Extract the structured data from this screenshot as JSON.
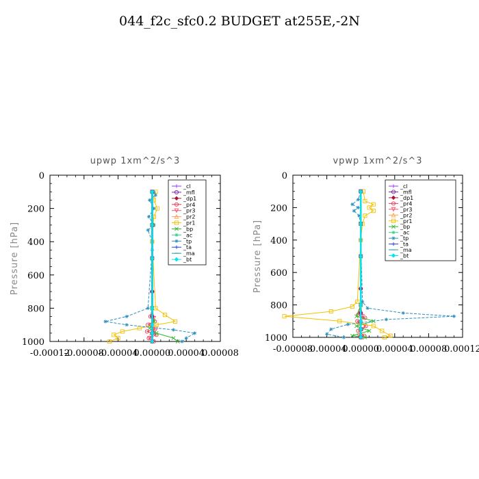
{
  "page_title": "044_f2c_sfc0.2  BUDGET at255E,-2N",
  "chart_data": [
    {
      "type": "line",
      "title": "upwp   1xm^2/s^3",
      "xlabel": "",
      "ylabel": "Pressure [hPa]",
      "xlim": [
        -0.00012,
        8e-05
      ],
      "ylim": [
        1000,
        0
      ],
      "y_reversed": true,
      "x_ticks": [
        "-0.00012",
        "-0.00008",
        "-0.00004",
        "0.00000",
        "0.00004",
        "0.00008"
      ],
      "y_ticks": [
        "0",
        "200",
        "400",
        "600",
        "800",
        "1000"
      ],
      "legend_position": "top-right",
      "series": [
        {
          "name": "_cl",
          "color": "#9b30ff",
          "marker": "+",
          "pressure": [
            100,
            300,
            500,
            700,
            850,
            950,
            1000
          ],
          "values": [
            0,
            0,
            0,
            0,
            0,
            0,
            0
          ]
        },
        {
          "name": "_mfl",
          "color": "#7a1fa2",
          "marker": "o",
          "pressure": [
            100,
            300,
            500,
            700,
            850,
            950,
            1000
          ],
          "values": [
            0,
            0,
            0,
            0,
            0,
            0,
            0
          ]
        },
        {
          "name": "_dp1",
          "color": "#b0103a",
          "marker": "d",
          "pressure": [
            100,
            300,
            500,
            700,
            850,
            950,
            1000
          ],
          "values": [
            0,
            0,
            0,
            0,
            0,
            0,
            0
          ]
        },
        {
          "name": "_pr4",
          "color": "#e8384f",
          "marker": "o",
          "pressure": [
            100,
            300,
            500,
            800,
            850,
            880,
            900,
            920,
            940,
            960,
            980,
            1000
          ],
          "values": [
            0,
            0,
            0,
            0,
            -2e-06,
            3e-06,
            -5e-06,
            4e-06,
            -6e-06,
            5e-06,
            -4e-06,
            2e-06
          ]
        },
        {
          "name": "_pr3",
          "color": "#ff4c6a",
          "marker": "v",
          "pressure": [
            100,
            300,
            500,
            800,
            860,
            900,
            940,
            980,
            1000
          ],
          "values": [
            0,
            0,
            0,
            0,
            2e-06,
            -2e-06,
            3e-06,
            -3e-06,
            1e-06
          ]
        },
        {
          "name": "_pr2",
          "color": "#ff9e4a",
          "marker": "^",
          "pressure": [
            100,
            300,
            500,
            800,
            900,
            950,
            1000
          ],
          "values": [
            0,
            0,
            0,
            0,
            1e-06,
            -1e-06,
            0
          ]
        },
        {
          "name": "_pr1",
          "color": "#f5c000",
          "marker": "s",
          "pressure": [
            100,
            150,
            200,
            250,
            300,
            400,
            800,
            840,
            880,
            900,
            920,
            940,
            960,
            980,
            1000
          ],
          "values": [
            4e-06,
            2e-06,
            6e-06,
            2e-06,
            1e-06,
            0,
            4e-06,
            1.5e-05,
            2.7e-05,
            5e-06,
            -1.5e-05,
            -3.5e-05,
            -4.5e-05,
            -4e-05,
            -5e-05
          ]
        },
        {
          "name": "_bp",
          "color": "#2db82d",
          "marker": "x",
          "pressure": [
            100,
            300,
            500,
            800,
            880,
            920,
            950,
            980,
            1000
          ],
          "values": [
            0,
            0,
            0,
            0,
            2e-06,
            -3e-06,
            5e-06,
            2.5e-05,
            3e-05
          ]
        },
        {
          "name": "_ac",
          "color": "#2bd48a",
          "marker": "*",
          "pressure": [
            100,
            300,
            500,
            800,
            900,
            950,
            1000
          ],
          "values": [
            0,
            0,
            0,
            0,
            0,
            0,
            0
          ]
        },
        {
          "name": "_tp",
          "color": "#2a8fbd",
          "marker": "*",
          "pressure": [
            100,
            120,
            150,
            200,
            250,
            300,
            330,
            400,
            450,
            800,
            850,
            880,
            900,
            930,
            950,
            980,
            1000
          ],
          "values": [
            2e-06,
            4e-06,
            -3e-06,
            2e-06,
            -4e-06,
            2e-06,
            -5e-06,
            0,
            0,
            -5e-06,
            -3e-05,
            -5.5e-05,
            -3e-05,
            2.5e-05,
            5e-05,
            4e-05,
            3.5e-05
          ]
        },
        {
          "name": "_ta",
          "color": "#2a3fd0",
          "marker": "+",
          "pressure": [
            100,
            300,
            500,
            800,
            900,
            950,
            1000
          ],
          "values": [
            0,
            0,
            0,
            0,
            0,
            0,
            0
          ]
        },
        {
          "name": "_ma",
          "color": "#1a9a9a",
          "marker": "-",
          "pressure": [
            100,
            300,
            500,
            800,
            900,
            950,
            1000
          ],
          "values": [
            0,
            0,
            0,
            0,
            0,
            0,
            0
          ]
        },
        {
          "name": "_bt",
          "color": "#00e5ee",
          "marker": "d",
          "pressure": [
            100,
            300,
            500,
            800,
            900,
            950,
            1000
          ],
          "values": [
            0,
            0,
            0,
            0,
            0,
            0,
            0
          ]
        }
      ]
    },
    {
      "type": "line",
      "title": "vpwp   1xm^2/s^3",
      "xlabel": "",
      "ylabel": "Pressure [hPa]",
      "xlim": [
        -8e-05,
        0.00012
      ],
      "ylim": [
        1000,
        0
      ],
      "y_reversed": true,
      "x_ticks": [
        "-0.00008",
        "-0.00004",
        "0.00000",
        "0.00004",
        "0.00008",
        "0.00012"
      ],
      "y_ticks": [
        "0",
        "200",
        "400",
        "600",
        "800",
        "1000"
      ],
      "legend_position": "top-right",
      "series": [
        {
          "name": "_cl",
          "color": "#9b30ff",
          "marker": "+",
          "pressure": [
            100,
            300,
            500,
            700,
            850,
            950,
            1000
          ],
          "values": [
            0,
            0,
            0,
            0,
            0,
            0,
            0
          ]
        },
        {
          "name": "_mfl",
          "color": "#7a1fa2",
          "marker": "o",
          "pressure": [
            100,
            300,
            500,
            700,
            850,
            950,
            1000
          ],
          "values": [
            0,
            0,
            0,
            0,
            0,
            0,
            0
          ]
        },
        {
          "name": "_dp1",
          "color": "#b0103a",
          "marker": "d",
          "pressure": [
            100,
            300,
            500,
            700,
            850,
            950,
            1000
          ],
          "values": [
            0,
            0,
            0,
            0,
            0,
            0,
            0
          ]
        },
        {
          "name": "_pr4",
          "color": "#e8384f",
          "marker": "o",
          "pressure": [
            100,
            300,
            500,
            800,
            860,
            880,
            900,
            930,
            960,
            990,
            1000
          ],
          "values": [
            0,
            0,
            0,
            0,
            -3e-06,
            5e-06,
            -4e-06,
            6e-06,
            -3e-06,
            4e-06,
            2e-06
          ]
        },
        {
          "name": "_pr3",
          "color": "#ff4c6a",
          "marker": "v",
          "pressure": [
            100,
            300,
            500,
            800,
            870,
            910,
            950,
            990,
            1000
          ],
          "values": [
            0,
            0,
            0,
            0,
            2e-06,
            -2e-06,
            2e-06,
            -2e-06,
            0
          ]
        },
        {
          "name": "_pr2",
          "color": "#ff9e4a",
          "marker": "^",
          "pressure": [
            100,
            300,
            500,
            800,
            900,
            950,
            1000
          ],
          "values": [
            0,
            0,
            0,
            0,
            1e-06,
            -1e-06,
            0
          ]
        },
        {
          "name": "_pr1",
          "color": "#f5c000",
          "marker": "s",
          "pressure": [
            100,
            160,
            180,
            200,
            220,
            250,
            300,
            400,
            780,
            810,
            840,
            870,
            900,
            930,
            960,
            990,
            1000
          ],
          "values": [
            3e-06,
            5e-06,
            1.5e-05,
            1e-05,
            1.5e-05,
            5e-06,
            2e-06,
            0,
            -4e-06,
            -1e-05,
            -3.5e-05,
            -9e-05,
            -2.5e-05,
            1.5e-05,
            2.5e-05,
            3.5e-05,
            2.8e-05
          ]
        },
        {
          "name": "_bp",
          "color": "#2db82d",
          "marker": "x",
          "pressure": [
            100,
            300,
            500,
            800,
            870,
            900,
            930,
            960,
            990,
            1000
          ],
          "values": [
            0,
            0,
            0,
            0,
            -5e-06,
            1.5e-05,
            -5e-06,
            1e-05,
            -1e-05,
            5e-06
          ]
        },
        {
          "name": "_ac",
          "color": "#2bd48a",
          "marker": "*",
          "pressure": [
            100,
            300,
            500,
            800,
            900,
            950,
            1000
          ],
          "values": [
            0,
            0,
            0,
            0,
            0,
            0,
            0
          ]
        },
        {
          "name": "_tp",
          "color": "#2a8fbd",
          "marker": "*",
          "pressure": [
            100,
            150,
            180,
            200,
            220,
            250,
            300,
            400,
            780,
            820,
            850,
            870,
            890,
            920,
            950,
            980,
            1000
          ],
          "values": [
            0,
            -3e-06,
            -1e-05,
            -3e-06,
            -8e-06,
            -2e-06,
            0,
            0,
            2e-06,
            8e-06,
            5e-05,
            0.00011,
            3e-05,
            -1.5e-05,
            -3.5e-05,
            -4e-05,
            -2e-05
          ]
        },
        {
          "name": "_ta",
          "color": "#2a3fd0",
          "marker": "+",
          "pressure": [
            100,
            300,
            500,
            800,
            900,
            950,
            1000
          ],
          "values": [
            0,
            0,
            0,
            0,
            0,
            0,
            0
          ]
        },
        {
          "name": "_ma",
          "color": "#1a9a9a",
          "marker": "-",
          "pressure": [
            100,
            300,
            500,
            800,
            900,
            950,
            1000
          ],
          "values": [
            0,
            0,
            0,
            0,
            0,
            0,
            0
          ]
        },
        {
          "name": "_bt",
          "color": "#00e5ee",
          "marker": "d",
          "pressure": [
            100,
            300,
            500,
            800,
            900,
            950,
            1000
          ],
          "values": [
            0,
            0,
            0,
            0,
            0,
            0,
            0
          ]
        }
      ]
    }
  ]
}
